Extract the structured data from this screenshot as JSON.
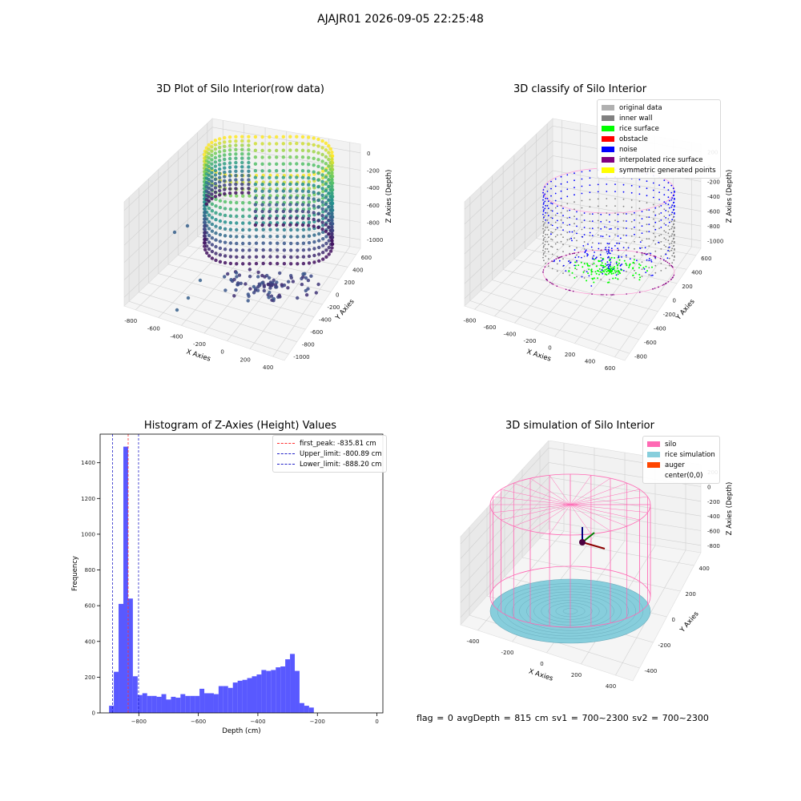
{
  "suptitle": "AJAJR01 2026-09-05 22:25:48",
  "footer": "flag = 0     avgDepth = 815 cm  sv1 = 700~2300  sv2 = 700~2300",
  "colors": {
    "histogram_bar": "#5050ff",
    "first_peak_line": "#ff3030",
    "limit_lines": "#2020c8",
    "silo": "#ff69b4",
    "rice_simulation": "#87cedc",
    "auger": "#ff4500"
  },
  "chart_data": [
    {
      "type": "scatter",
      "subtype": "3d-scatter",
      "title": "3D Plot of Silo Interior(row data)",
      "colormap": "viridis",
      "axes": {
        "x": {
          "label": "X Axies",
          "ticks": [
            -800,
            -600,
            -400,
            -200,
            0,
            200,
            400
          ]
        },
        "y": {
          "label": "Y Axies",
          "ticks": [
            -1000,
            -800,
            -600,
            -400,
            -200,
            0,
            200,
            400,
            600
          ]
        },
        "z": {
          "label": "Z Axies (Depth)",
          "ticks": [
            0,
            -200,
            -400,
            -600,
            -800,
            -1000
          ]
        }
      }
    },
    {
      "type": "scatter",
      "subtype": "3d-scatter",
      "title": "3D classify of Silo Interior",
      "legend_position": "upper-right",
      "legend": [
        {
          "label": "original data",
          "color": "#b0b0b0"
        },
        {
          "label": "inner wall",
          "color": "#808080"
        },
        {
          "label": "rice surface",
          "color": "#00ff00"
        },
        {
          "label": "obstacle",
          "color": "#ff0000"
        },
        {
          "label": "noise",
          "color": "#0000ff"
        },
        {
          "label": "interpolated rice surface",
          "color": "#800080"
        },
        {
          "label": "symmetric generated points",
          "color": "#ffff00"
        }
      ],
      "axes": {
        "x": {
          "label": "X Axies",
          "ticks": [
            -800,
            -600,
            -400,
            -200,
            0,
            200,
            400,
            600
          ]
        },
        "y": {
          "label": "Y Axies",
          "ticks": [
            -800,
            -600,
            -400,
            -200,
            0,
            200,
            400,
            600
          ]
        },
        "z": {
          "label": "Z Axies (Depth)",
          "ticks": [
            200,
            0,
            -200,
            -400,
            -600,
            -800,
            -1000
          ]
        }
      }
    },
    {
      "type": "bar",
      "subtype": "histogram",
      "title": "Histogram of Z-Axies (Height) Values",
      "xlabel": "Depth (cm)",
      "ylabel": "Frequency",
      "xlim": [
        -930,
        20
      ],
      "ylim": [
        0,
        1560
      ],
      "xticks": [
        -800,
        -600,
        -400,
        -200,
        0
      ],
      "yticks": [
        0,
        200,
        400,
        600,
        800,
        1000,
        1200,
        1400
      ],
      "bin_start": -900,
      "bin_width": 16,
      "counts": [
        40,
        230,
        610,
        1490,
        640,
        205,
        100,
        110,
        95,
        95,
        90,
        105,
        75,
        90,
        85,
        105,
        95,
        95,
        95,
        135,
        110,
        110,
        105,
        150,
        150,
        140,
        170,
        180,
        185,
        195,
        205,
        215,
        240,
        235,
        240,
        255,
        260,
        300,
        330,
        235,
        55,
        40,
        30
      ],
      "vlines": [
        {
          "x": -835.81,
          "style": "first_peak",
          "label": "first_peak: -835.81 cm"
        },
        {
          "x": -800.89,
          "style": "limit",
          "label": "Upper_limit: -800.89 cm"
        },
        {
          "x": -888.2,
          "style": "limit",
          "label": "Lower_limit: -888.20 cm"
        }
      ],
      "legend_position": "upper-right"
    },
    {
      "type": "scatter",
      "subtype": "3d-wireframe",
      "title": "3D simulation of Silo Interior",
      "legend_position": "upper-right",
      "legend": [
        {
          "label": "silo",
          "color": "#ff69b4"
        },
        {
          "label": "rice simulation",
          "color": "#87cedc"
        },
        {
          "label": "auger",
          "color": "#ff4500"
        },
        {
          "label": "center(0,0)",
          "color": ""
        }
      ],
      "axes": {
        "x": {
          "label": "X Axies",
          "ticks": [
            -400,
            -200,
            0,
            200,
            400
          ]
        },
        "y": {
          "label": "Y Axies",
          "ticks": [
            -400,
            -200,
            0,
            200,
            400
          ]
        },
        "z": {
          "label": "Z Axies (Depth)",
          "ticks": [
            200,
            0,
            -200,
            -400,
            -600,
            -800
          ]
        }
      }
    }
  ]
}
